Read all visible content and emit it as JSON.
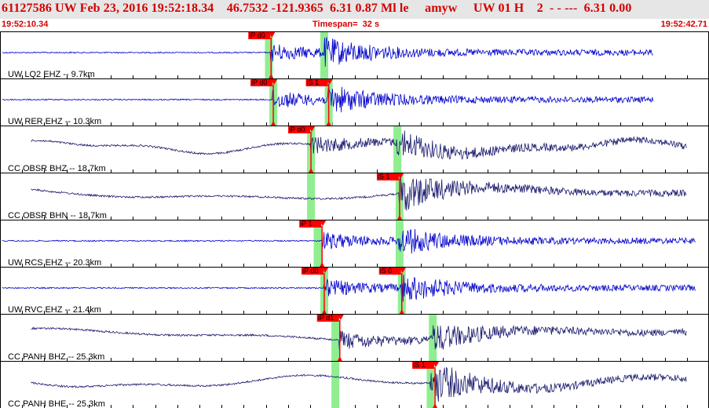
{
  "header": {
    "title": "61127586 UW Feb 23, 2016 19:52:18.34    46.7532 -121.9365  6.31 0.87 Ml le     amyw     UW 01 H    2  - - ---  6.31 0.00",
    "start_time": "19:52:10.34",
    "timespan": "Timespan=  32 s",
    "end_time": "19:52:42.71"
  },
  "colors": {
    "header_bg": "#e6e6e6",
    "header_text": "#d40000",
    "trace_blue": "#0000cc",
    "trace_navy": "#1a1a6e",
    "pick_red": "#ff0000",
    "window_green": "#90ee90"
  },
  "traces": [
    {
      "label": "UW LQ2 EHZ -- 9.7km",
      "color": "blue",
      "picks": [
        {
          "label": "iP d0",
          "t": 12.2
        }
      ],
      "windows": [
        12.1,
        14.6
      ]
    },
    {
      "label": "UW RER EHZ -- 10.3km",
      "color": "blue",
      "picks": [
        {
          "label": "iP d0",
          "t": 12.3
        },
        {
          "label": "iS 1",
          "t": 14.8
        }
      ],
      "windows": [
        12.3,
        14.8
      ]
    },
    {
      "label": "CC OBSR BHZ -- 18.7km",
      "color": "navy",
      "picks": [
        {
          "label": "iP d0",
          "t": 14.0
        }
      ],
      "windows": [
        14.0,
        17.9
      ]
    },
    {
      "label": "CC OBSR BHN -- 18.7km",
      "color": "navy",
      "picks": [
        {
          "label": "iS 1",
          "t": 18.0
        }
      ],
      "windows": [
        14.0,
        18.0
      ]
    },
    {
      "label": "UW RCS EHZ -- 20.3km",
      "color": "blue",
      "picks": [
        {
          "label": "iP 1",
          "t": 14.5
        }
      ],
      "windows": [
        14.3,
        18.0
      ]
    },
    {
      "label": "UW RVC EHZ -- 21.4km",
      "color": "blue",
      "picks": [
        {
          "label": "iP d0",
          "t": 14.6
        },
        {
          "label": "iS 0",
          "t": 18.1
        }
      ],
      "windows": [
        14.6,
        18.1
      ]
    },
    {
      "label": "CC PANH BHZ -- 25.3km",
      "color": "navy",
      "picks": [
        {
          "label": "iP d1",
          "t": 15.3
        }
      ],
      "windows": [
        15.1,
        19.5
      ]
    },
    {
      "label": "CC PANH BHE -- 25.3km",
      "color": "navy",
      "picks": [
        {
          "label": "iS 1",
          "t": 19.6
        }
      ],
      "windows": [
        15.1,
        19.4
      ]
    }
  ]
}
